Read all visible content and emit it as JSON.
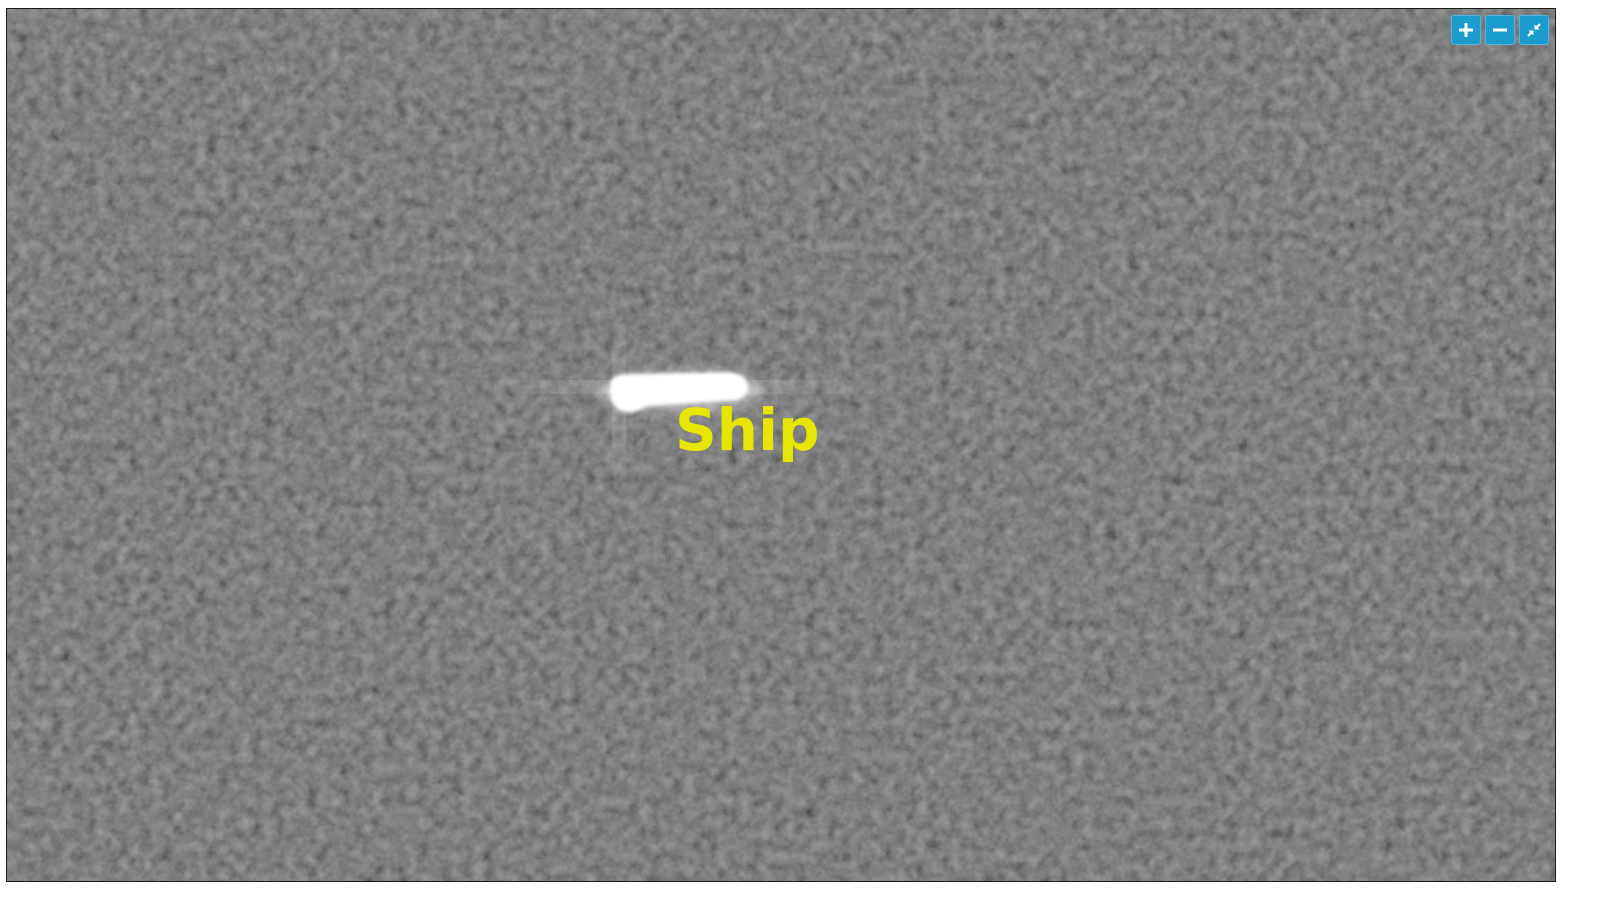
{
  "viewer": {
    "background_color": "#2b2b2b",
    "target_color": "#ffffff"
  },
  "detection": {
    "label": "Ship",
    "label_color": "#e6e600"
  },
  "controls": {
    "button_color": "#1a9ccf",
    "zoom_in": {
      "icon": "plus-icon"
    },
    "zoom_out": {
      "icon": "minus-icon"
    },
    "fit_view": {
      "icon": "collapse-arrows-icon"
    }
  }
}
